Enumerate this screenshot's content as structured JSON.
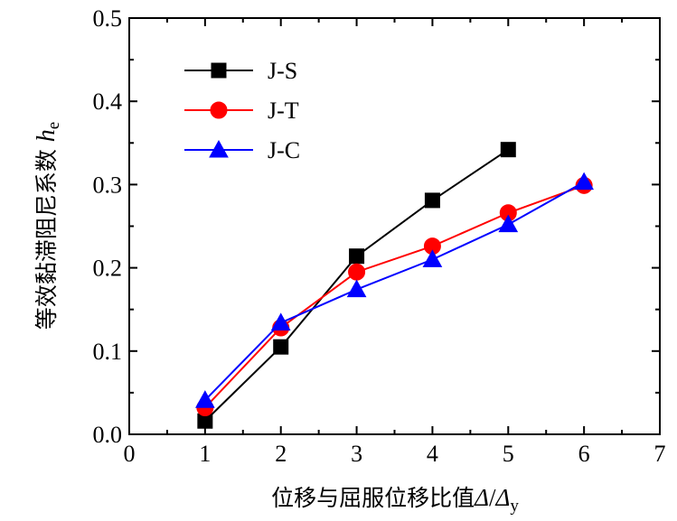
{
  "chart_data": {
    "type": "line",
    "title": "",
    "xlabel": "位移与屈服位移比值Δ/Δy",
    "xlabel_parts": {
      "text": "位移与屈服位移比值",
      "sym1": "Δ",
      "slash": "/",
      "sym2": "Δ",
      "sub": "y"
    },
    "ylabel": "等效黏滞阻尼系数 he",
    "ylabel_parts": {
      "text": "等效黏滞阻尼系数 ",
      "sym": "h",
      "sub": "e"
    },
    "xlim": [
      0,
      7
    ],
    "ylim": [
      0.0,
      0.5
    ],
    "x_ticks": [
      0,
      1,
      2,
      3,
      4,
      5,
      6,
      7
    ],
    "y_ticks": [
      0.0,
      0.1,
      0.2,
      0.3,
      0.4,
      0.5
    ],
    "x_tick_labels": [
      "0",
      "1",
      "2",
      "3",
      "4",
      "5",
      "6",
      "7"
    ],
    "y_tick_labels": [
      "0.0",
      "0.1",
      "0.2",
      "0.3",
      "0.4",
      "0.5"
    ],
    "grid": false,
    "legend_position": "top-left",
    "series": [
      {
        "name": "J-S",
        "color": "#000000",
        "marker": "square",
        "x": [
          1,
          2,
          3,
          4,
          5
        ],
        "values": [
          0.016,
          0.105,
          0.214,
          0.281,
          0.342
        ]
      },
      {
        "name": "J-T",
        "color": "#ff0000",
        "marker": "circle",
        "x": [
          1,
          2,
          3,
          4,
          5,
          6
        ],
        "values": [
          0.032,
          0.128,
          0.195,
          0.226,
          0.266,
          0.299
        ]
      },
      {
        "name": "J-C",
        "color": "#0000ff",
        "marker": "triangle",
        "x": [
          1,
          2,
          3,
          4,
          5,
          6
        ],
        "values": [
          0.041,
          0.134,
          0.174,
          0.21,
          0.252,
          0.303
        ]
      }
    ]
  }
}
